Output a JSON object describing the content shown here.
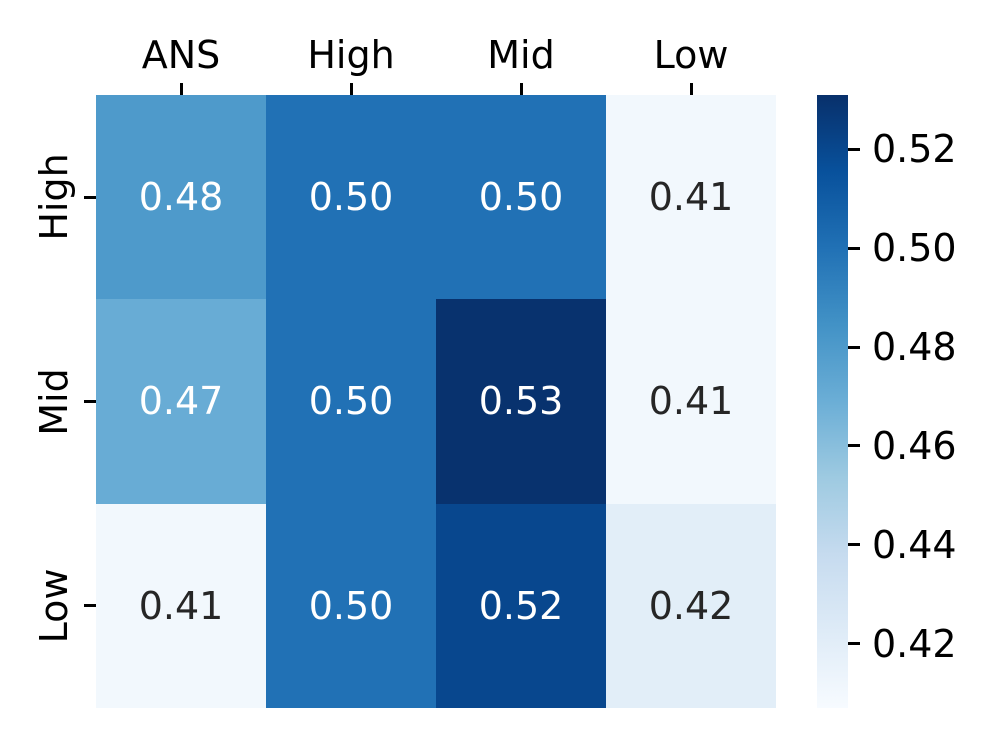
{
  "chart_data": {
    "type": "heatmap",
    "title": "",
    "xlabel": "",
    "ylabel": "",
    "columns": [
      "ANS",
      "High",
      "Mid",
      "Low"
    ],
    "rows": [
      "High",
      "Mid",
      "Low"
    ],
    "values": [
      [
        0.48,
        0.5,
        0.5,
        0.41
      ],
      [
        0.47,
        0.5,
        0.53,
        0.41
      ],
      [
        0.41,
        0.5,
        0.52,
        0.42
      ]
    ],
    "annotations": [
      [
        "0.48",
        "0.50",
        "0.50",
        "0.41"
      ],
      [
        "0.47",
        "0.50",
        "0.53",
        "0.41"
      ],
      [
        "0.41",
        "0.50",
        "0.52",
        "0.42"
      ]
    ],
    "colormap": "Blues",
    "colormap_stops": [
      "#f7fbff",
      "#deebf7",
      "#c6dbef",
      "#9ecae1",
      "#6baed6",
      "#4292c6",
      "#2171b5",
      "#08519c",
      "#08306b"
    ],
    "vmin": 0.407,
    "vmax": 0.531,
    "grid": false,
    "colorbar": {
      "position": "right",
      "orientation": "vertical",
      "tick_values": [
        0.52,
        0.5,
        0.48,
        0.46,
        0.44,
        0.42
      ],
      "tick_labels": [
        "0.52",
        "0.50",
        "0.48",
        "0.46",
        "0.44",
        "0.42"
      ]
    },
    "colors": {
      "annotation_light": "#ffffff",
      "annotation_dark": "#262626",
      "tick_color": "#000000",
      "background": "#ffffff"
    }
  }
}
